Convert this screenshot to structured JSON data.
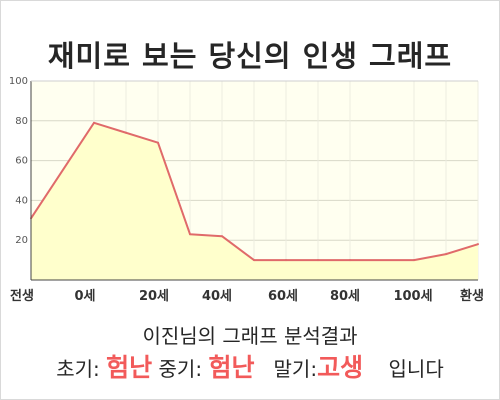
{
  "title": "재미로 보는 당신의 인생 그래프",
  "caption": "이진님의 그래프 분석결과",
  "summary": {
    "early_label": "초기:",
    "early_value": "험난",
    "mid_label": "중기:",
    "mid_value": "험난",
    "late_label": "말기:",
    "late_value": "고생",
    "suffix": "입니다"
  },
  "colors": {
    "line": "#e06a6a",
    "fill": "#ffffcc",
    "accent_text": "#f25a5a",
    "grid": "#d8d8c8"
  },
  "chart_data": {
    "type": "area",
    "title": "재미로 보는 당신의 인생 그래프",
    "xlabel": "",
    "ylabel": "",
    "ylim": [
      0,
      100
    ],
    "yticks": [
      20,
      40,
      60,
      80,
      100
    ],
    "xtick_labels": [
      "전생",
      "0세",
      "20세",
      "40세",
      "60세",
      "80세",
      "100세",
      "환생"
    ],
    "grid": true,
    "series": [
      {
        "x": [
          "전생",
          "0세",
          "",
          "20세",
          "",
          "",
          "40세",
          "",
          "60세",
          "80세",
          "100세",
          "",
          "환생"
        ],
        "values": [
          31,
          79,
          74,
          69,
          23,
          22,
          10,
          10,
          10,
          10,
          10,
          13,
          18
        ]
      }
    ]
  }
}
